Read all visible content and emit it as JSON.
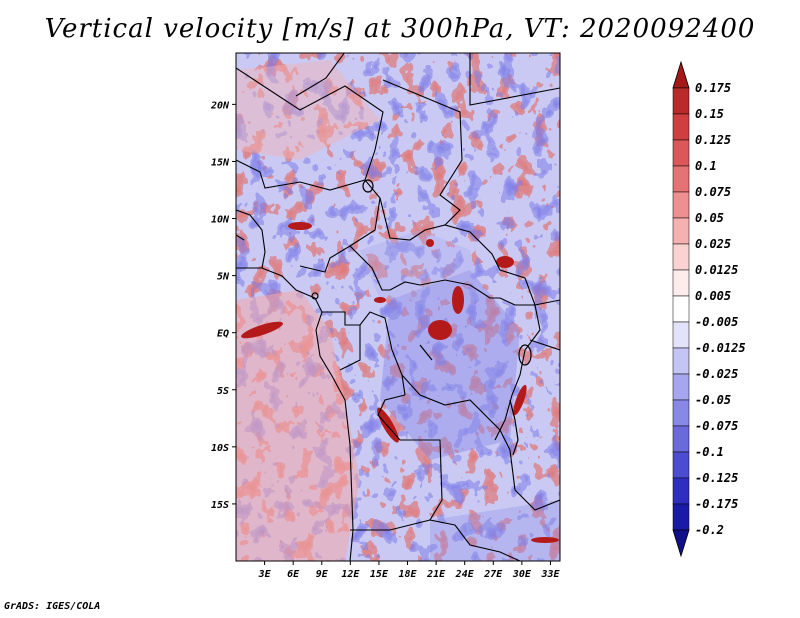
{
  "title": "Vertical velocity [m/s] at 300hPa, VT: 2020092400",
  "credit": "GrADS: IGES/COLA",
  "map": {
    "lat_labels": [
      "20N",
      "15N",
      "10N",
      "5N",
      "EQ",
      "5S",
      "10S",
      "15S"
    ],
    "lat_values": [
      20,
      15,
      10,
      5,
      0,
      -5,
      -10,
      -15
    ],
    "lon_labels": [
      "3E",
      "6E",
      "9E",
      "12E",
      "15E",
      "18E",
      "21E",
      "24E",
      "27E",
      "30E",
      "33E"
    ],
    "lon_values": [
      3,
      6,
      9,
      12,
      15,
      18,
      21,
      24,
      27,
      30,
      33
    ],
    "lon_range": [
      0,
      34
    ],
    "lat_range": [
      -20,
      24.5
    ]
  },
  "colorbar": {
    "labels": [
      "0.175",
      "0.15",
      "0.125",
      "0.1",
      "0.075",
      "0.05",
      "0.025",
      "0.0125",
      "0.005",
      "-0.005",
      "-0.0125",
      "-0.025",
      "-0.05",
      "-0.075",
      "-0.1",
      "-0.125",
      "-0.175",
      "-0.2"
    ],
    "colors": [
      "#a51818",
      "#bb2a2a",
      "#cf3f3f",
      "#dc5858",
      "#e67373",
      "#ee9090",
      "#f5b0b0",
      "#fad2d2",
      "#fdecec",
      "#ffffff",
      "#e2e2fb",
      "#c4c4f5",
      "#a6a6ee",
      "#8888e6",
      "#6a6add",
      "#4c4cd2",
      "#2e2ec2",
      "#1a1aa8",
      "#10108a"
    ]
  }
}
